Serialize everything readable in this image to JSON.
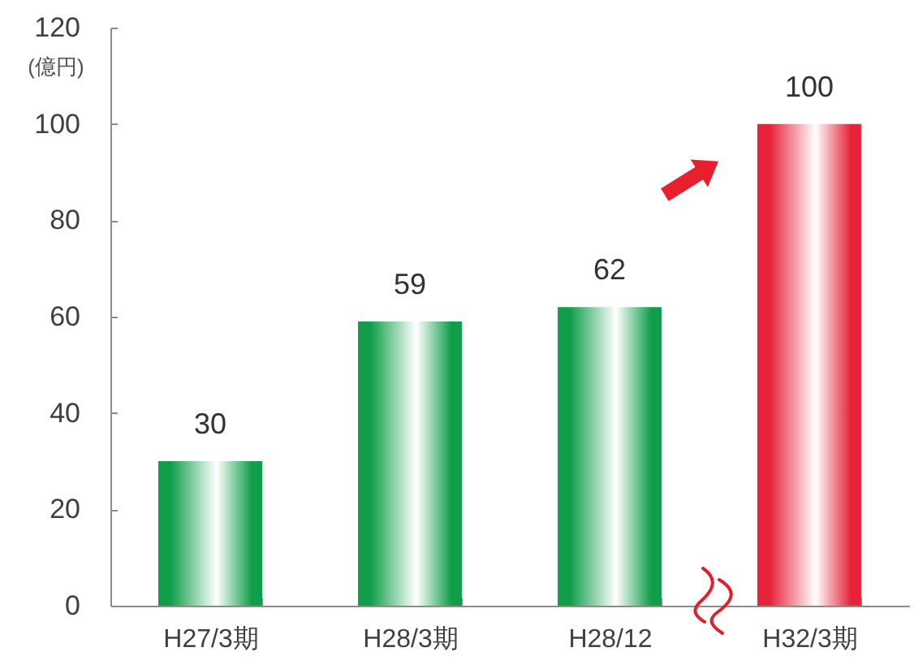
{
  "chart_data": {
    "type": "bar",
    "ylabel": "(億円)",
    "categories": [
      "H27/3期",
      "H28/3期",
      "H28/12",
      "H32/3期"
    ],
    "values": [
      30,
      59,
      62,
      100
    ],
    "colors": [
      "#109e4a",
      "#109e4a",
      "#109e4a",
      "#e6233a"
    ],
    "ylim": [
      0,
      120
    ],
    "yticks": [
      0,
      20,
      40,
      60,
      80,
      100,
      120
    ],
    "data_labels": true
  }
}
